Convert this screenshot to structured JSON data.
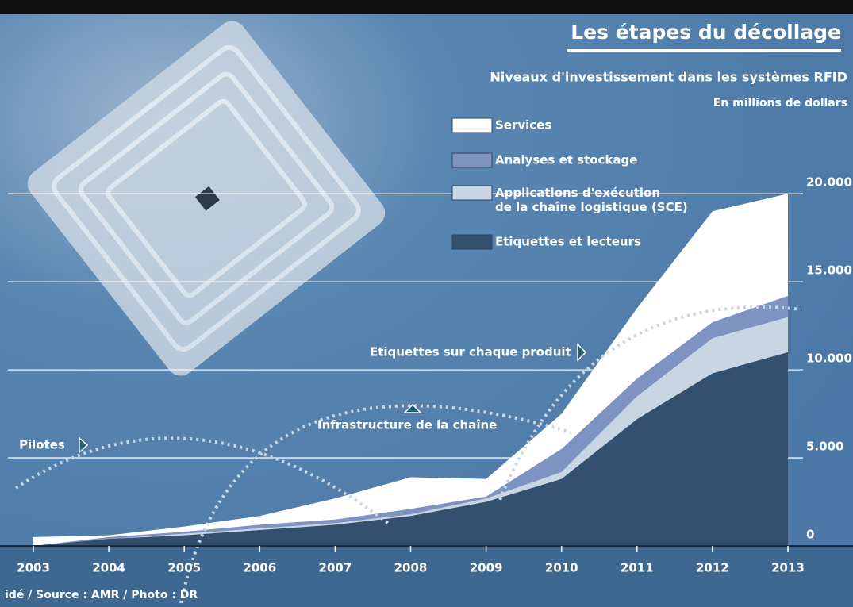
{
  "chart_data": {
    "type": "stacked_area",
    "title": "Les étapes du décollage",
    "subtitle": "Niveaux d'investissement dans les systèmes RFID",
    "unit_note": "En millions de dollars",
    "source": "idé / Source : AMR / Photo : DR",
    "annotations": [
      "Pilotes",
      "Infrastructure de la chaîne",
      "Etiquettes sur chaque produit"
    ],
    "x": [
      2003,
      2004,
      2005,
      2006,
      2007,
      2008,
      2009,
      2010,
      2011,
      2012,
      2013
    ],
    "xlim": [
      2002.8,
      2013.2
    ],
    "xticks": [
      2003,
      2004,
      2005,
      2006,
      2007,
      2008,
      2009,
      2010,
      2011,
      2012,
      2013
    ],
    "ylim": [
      0,
      20500
    ],
    "yticks": [
      0,
      {
        "value": 5000,
        "label": "5.000"
      },
      {
        "value": 10000,
        "label": "10.000"
      },
      {
        "value": 15000,
        "label": "15.000"
      },
      {
        "value": 20000,
        "label": "20.000"
      }
    ],
    "grid": true,
    "series": [
      {
        "name": "Etiquettes et lecteurs",
        "color": "#33506f",
        "values": [
          0,
          400,
          600,
          900,
          1200,
          1700,
          2500,
          3800,
          7200,
          9800,
          11000
        ]
      },
      {
        "name": "Applications d'exécution\nde la chaîne logistique (SCE)",
        "color": "#c8d5e3",
        "values": [
          0,
          0,
          100,
          100,
          100,
          100,
          200,
          400,
          1300,
          2000,
          2000
        ]
      },
      {
        "name": "Analyses et stockage",
        "color": "#7f93c2",
        "values": [
          0,
          100,
          100,
          200,
          200,
          300,
          100,
          1300,
          1000,
          900,
          1200
        ]
      },
      {
        "name": "Services",
        "color": "#ffffff",
        "values": [
          500,
          100,
          300,
          500,
          1200,
          1800,
          1000,
          2000,
          4000,
          6300,
          5800
        ]
      }
    ]
  }
}
